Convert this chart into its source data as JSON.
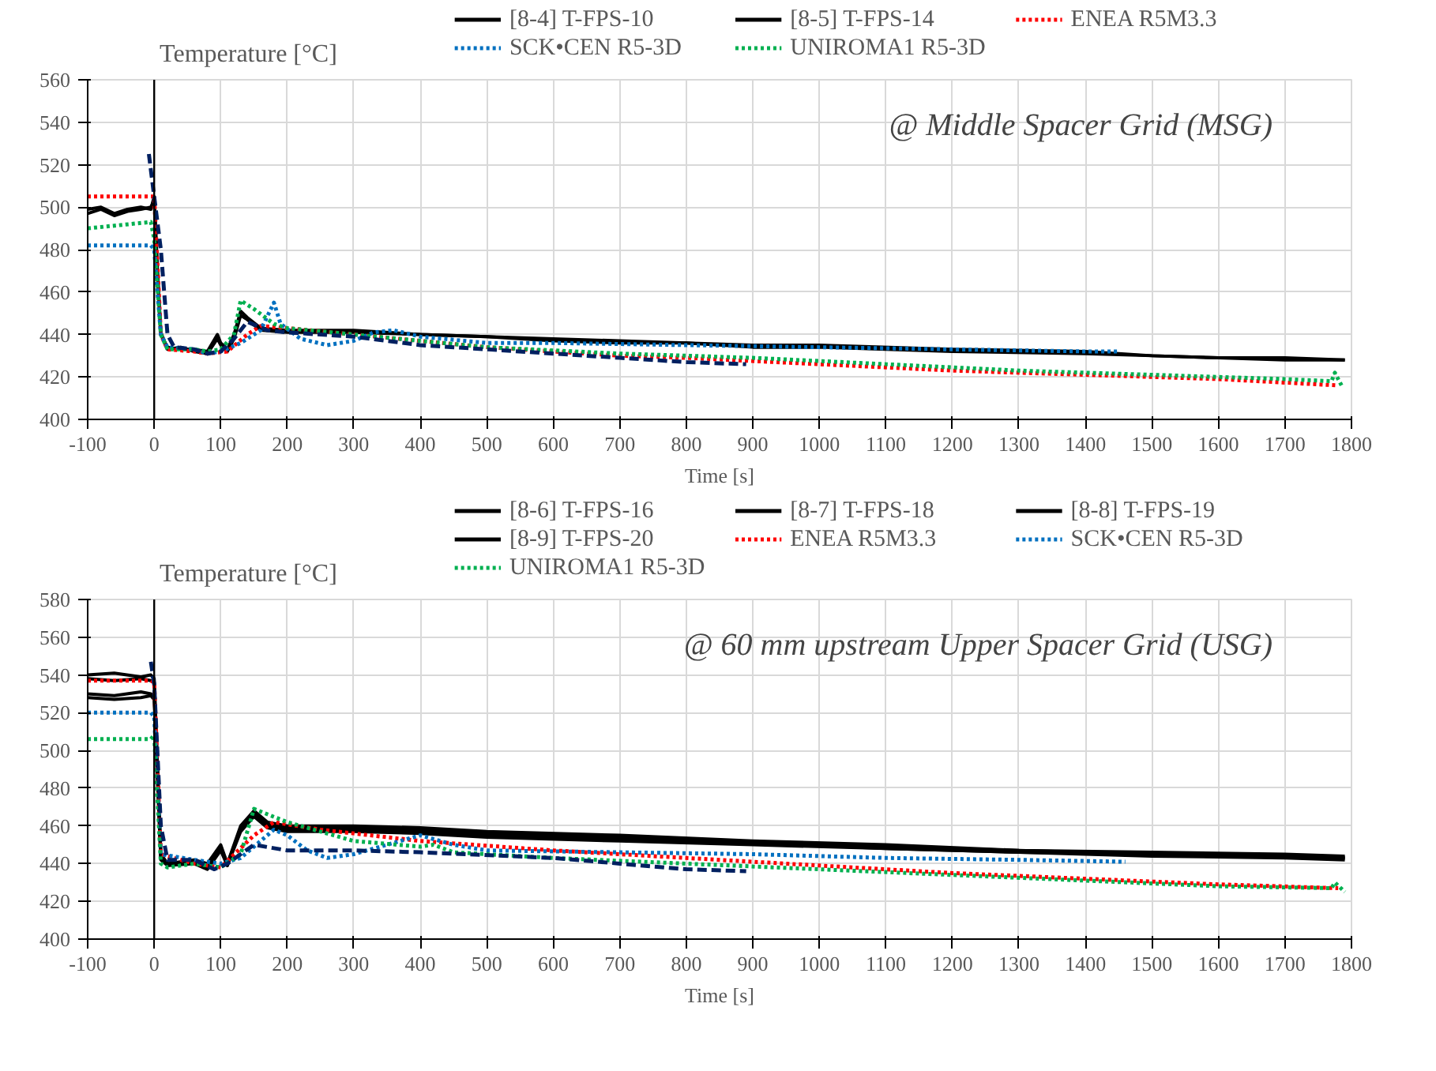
{
  "chart_data": [
    {
      "type": "line",
      "annotations": [
        "@ Middle Spacer Grid (MSG)"
      ],
      "xlabel": "Time [s]",
      "ylabel": "Temperature [°C]",
      "xlim": [
        -100,
        1800
      ],
      "ylim": [
        400,
        560
      ],
      "xticks": [
        -100,
        0,
        100,
        200,
        300,
        400,
        500,
        600,
        700,
        800,
        900,
        1000,
        1100,
        1200,
        1300,
        1400,
        1500,
        1600,
        1700,
        1800
      ],
      "yticks": [
        400,
        420,
        440,
        460,
        480,
        500,
        520,
        540,
        560
      ],
      "grid": true,
      "legend": "top",
      "series": [
        {
          "name": "[8-4] T-FPS-10",
          "color": "#000000",
          "line_style": "solid",
          "x": [
            -100,
            -80,
            -60,
            -40,
            -20,
            -5,
            0,
            5,
            10,
            20,
            40,
            60,
            80,
            95,
            100,
            110,
            120,
            130,
            140,
            160,
            200,
            300,
            400,
            500,
            600,
            700,
            800,
            900,
            1000,
            1200,
            1400,
            1500,
            1600,
            1700,
            1790
          ],
          "values": [
            499,
            500,
            497,
            499,
            500,
            499,
            505,
            470,
            440,
            434,
            433,
            433,
            432,
            440,
            436,
            433,
            440,
            451,
            448,
            443,
            442,
            442,
            440,
            439,
            438,
            437,
            436,
            435,
            435,
            433,
            432,
            430,
            429,
            429,
            428
          ]
        },
        {
          "name": "[8-5] T-FPS-14",
          "color": "#000000",
          "line_style": "solid",
          "x": [
            -100,
            -80,
            -60,
            -40,
            -20,
            -5,
            0,
            5,
            10,
            20,
            40,
            60,
            80,
            95,
            100,
            110,
            120,
            130,
            140,
            160,
            200,
            300,
            400,
            500,
            600,
            700,
            800,
            900,
            1000,
            1200,
            1400,
            1500,
            1600,
            1700,
            1790
          ],
          "values": [
            497,
            499,
            496,
            498,
            499,
            500,
            503,
            468,
            441,
            433,
            434,
            432,
            431,
            438,
            435,
            432,
            438,
            449,
            447,
            442,
            441,
            441,
            440,
            439,
            437,
            436,
            436,
            434,
            434,
            432,
            431,
            430,
            429,
            428,
            428
          ]
        },
        {
          "name": "ENEA R5M3.3",
          "color": "#ff0000",
          "line_style": "dotted",
          "x": [
            -100,
            -5,
            0,
            10,
            20,
            60,
            80,
            110,
            140,
            160,
            200,
            300,
            400,
            500,
            600,
            700,
            800,
            1000,
            1200,
            1400,
            1600,
            1780
          ],
          "values": [
            505,
            505,
            505,
            440,
            433,
            432,
            431,
            432,
            440,
            444,
            443,
            440,
            437,
            434,
            432,
            430,
            429,
            426,
            423,
            421,
            419,
            416
          ]
        },
        {
          "name": "SCK•CEN  R5-3D",
          "color": "#0070c0",
          "line_style": "dotted",
          "x": [
            -100,
            -5,
            0,
            10,
            20,
            60,
            80,
            100,
            130,
            160,
            180,
            190,
            220,
            260,
            300,
            330,
            360,
            400,
            500,
            600,
            800,
            1000,
            1200,
            1400,
            1450
          ],
          "values": [
            482,
            482,
            480,
            440,
            434,
            433,
            431,
            432,
            436,
            442,
            455,
            445,
            438,
            435,
            437,
            441,
            442,
            439,
            436,
            436,
            435,
            434,
            433,
            432,
            432
          ]
        },
        {
          "name": "UNIROMA1 R5-3D",
          "color": "#00b050",
          "line_style": "dotted",
          "x": [
            -100,
            -5,
            0,
            10,
            20,
            60,
            80,
            100,
            120,
            130,
            150,
            180,
            200,
            300,
            400,
            500,
            700,
            900,
            1100,
            1300,
            1500,
            1700,
            1770,
            1775,
            1785
          ],
          "values": [
            490,
            493,
            485,
            440,
            433,
            433,
            432,
            433,
            440,
            456,
            452,
            445,
            443,
            440,
            437,
            434,
            431,
            429,
            426,
            423,
            421,
            419,
            418,
            422,
            416
          ]
        },
        {
          "color": "#002060",
          "line_style": "dashed",
          "x": [
            -8,
            0,
            10,
            20,
            30,
            60,
            80,
            100,
            120,
            140,
            170,
            200,
            300,
            400,
            500,
            600,
            700,
            800,
            890
          ],
          "values": [
            525,
            505,
            480,
            440,
            434,
            433,
            431,
            432,
            438,
            446,
            442,
            441,
            439,
            435,
            433,
            431,
            429,
            427,
            426
          ]
        }
      ]
    },
    {
      "type": "line",
      "annotations": [
        "@ 60 mm upstream Upper Spacer Grid (USG)"
      ],
      "xlabel": "Time [s]",
      "ylabel": "Temperature [°C]",
      "xlim": [
        -100,
        1800
      ],
      "ylim": [
        400,
        580
      ],
      "xticks": [
        -100,
        0,
        100,
        200,
        300,
        400,
        500,
        600,
        700,
        800,
        900,
        1000,
        1100,
        1200,
        1300,
        1400,
        1500,
        1600,
        1700,
        1800
      ],
      "yticks": [
        400,
        420,
        440,
        460,
        480,
        500,
        520,
        540,
        560,
        580
      ],
      "grid": true,
      "legend": "top",
      "series": [
        {
          "name": "[8-6] T-FPS-16",
          "color": "#000000",
          "line_style": "solid",
          "x": [
            -100,
            -60,
            -20,
            -5,
            0,
            10,
            20,
            60,
            80,
            100,
            110,
            130,
            150,
            170,
            200,
            300,
            400,
            500,
            700,
            900,
            1100,
            1300,
            1500,
            1700,
            1790
          ],
          "values": [
            540,
            541,
            539,
            540,
            538,
            445,
            440,
            442,
            440,
            450,
            440,
            460,
            468,
            462,
            460,
            460,
            459,
            457,
            455,
            452,
            450,
            447,
            446,
            445,
            444
          ]
        },
        {
          "name": "[8-7] T-FPS-18",
          "color": "#000000",
          "line_style": "solid",
          "x": [
            -100,
            -60,
            -20,
            -5,
            0,
            10,
            20,
            60,
            80,
            100,
            110,
            130,
            150,
            170,
            200,
            300,
            400,
            500,
            700,
            900,
            1100,
            1300,
            1500,
            1700,
            1790
          ],
          "values": [
            538,
            537,
            538,
            537,
            536,
            444,
            439,
            441,
            439,
            449,
            439,
            459,
            467,
            461,
            459,
            459,
            458,
            456,
            454,
            451,
            449,
            447,
            445,
            444,
            443
          ]
        },
        {
          "name": "[8-8] T-FPS-19",
          "color": "#000000",
          "line_style": "solid",
          "x": [
            -100,
            -60,
            -20,
            -5,
            0,
            10,
            20,
            60,
            80,
            100,
            110,
            130,
            150,
            170,
            200,
            300,
            400,
            500,
            700,
            900,
            1100,
            1300,
            1500,
            1700,
            1790
          ],
          "values": [
            530,
            529,
            531,
            530,
            529,
            443,
            440,
            441,
            438,
            448,
            440,
            458,
            466,
            460,
            458,
            458,
            457,
            455,
            453,
            451,
            448,
            446,
            445,
            444,
            443
          ]
        },
        {
          "name": "[8-9] T-FPS-20",
          "color": "#000000",
          "line_style": "solid",
          "x": [
            -100,
            -60,
            -20,
            -5,
            0,
            10,
            20,
            60,
            80,
            100,
            110,
            130,
            150,
            170,
            200,
            300,
            400,
            500,
            700,
            900,
            1100,
            1300,
            1500,
            1700,
            1790
          ],
          "values": [
            528,
            527,
            528,
            529,
            527,
            442,
            439,
            440,
            437,
            447,
            439,
            457,
            465,
            459,
            457,
            457,
            456,
            454,
            452,
            450,
            448,
            446,
            444,
            443,
            442
          ]
        },
        {
          "name": "ENEA R5M3.3",
          "color": "#ff0000",
          "line_style": "dotted",
          "x": [
            -100,
            -5,
            0,
            10,
            60,
            100,
            150,
            180,
            250,
            400,
            600,
            800,
            1000,
            1200,
            1400,
            1600,
            1780
          ],
          "values": [
            537,
            537,
            536,
            445,
            440,
            438,
            455,
            462,
            458,
            452,
            447,
            443,
            439,
            435,
            432,
            429,
            427
          ]
        },
        {
          "name": "SCK•CEN  R5-3D",
          "color": "#0070c0",
          "line_style": "dotted",
          "x": [
            -100,
            -5,
            0,
            10,
            60,
            100,
            130,
            180,
            200,
            230,
            260,
            300,
            350,
            400,
            450,
            500,
            700,
            900,
            1100,
            1300,
            1460
          ],
          "values": [
            520,
            520,
            518,
            445,
            442,
            440,
            443,
            458,
            455,
            447,
            443,
            445,
            450,
            455,
            450,
            447,
            446,
            445,
            443,
            442,
            441
          ]
        },
        {
          "name": "UNIROMA1 R5-3D",
          "color": "#00b050",
          "line_style": "dotted",
          "x": [
            -100,
            -5,
            0,
            10,
            20,
            60,
            100,
            130,
            150,
            200,
            300,
            400,
            420,
            450,
            600,
            800,
            1000,
            1200,
            1400,
            1600,
            1770,
            1775,
            1790
          ],
          "values": [
            506,
            506,
            508,
            440,
            438,
            440,
            438,
            445,
            469,
            462,
            452,
            449,
            450,
            446,
            443,
            440,
            437,
            434,
            431,
            428,
            427,
            430,
            425
          ]
        },
        {
          "color": "#002060",
          "line_style": "dashed",
          "x": [
            -5,
            0,
            10,
            20,
            60,
            90,
            110,
            150,
            200,
            300,
            400,
            600,
            800,
            890
          ],
          "values": [
            547,
            535,
            460,
            442,
            442,
            437,
            440,
            450,
            447,
            447,
            446,
            443,
            437,
            436
          ]
        }
      ]
    }
  ]
}
